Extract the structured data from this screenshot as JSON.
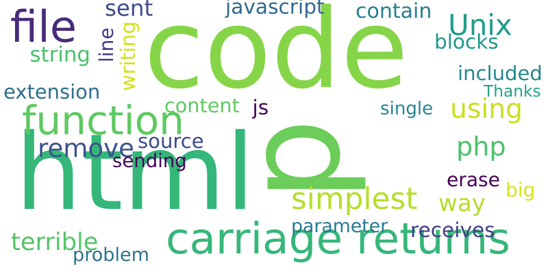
{
  "words": [
    {
      "text": "code",
      "color": "#86d549"
    },
    {
      "text": "p",
      "color": "#6ccd5a"
    },
    {
      "text": "html",
      "color": "#35b779"
    },
    {
      "text": "carriage returns",
      "color": "#35b779"
    },
    {
      "text": "function",
      "color": "#5ec962"
    },
    {
      "text": "file",
      "color": "#472c7a"
    },
    {
      "text": "simplest",
      "color": "#b5de2b"
    },
    {
      "text": "way",
      "color": "#b5de2b"
    },
    {
      "text": "Unix",
      "color": "#1f9e89"
    },
    {
      "text": "remove",
      "color": "#3b528b"
    },
    {
      "text": "php",
      "color": "#4ac16d"
    },
    {
      "text": "using",
      "color": "#c8e020"
    },
    {
      "text": "javascript",
      "color": "#31688e"
    },
    {
      "text": "contain",
      "color": "#277f8e"
    },
    {
      "text": "sent",
      "color": "#3e4a89"
    },
    {
      "text": "writing",
      "color": "#d2e21b"
    },
    {
      "text": "line",
      "color": "#443983"
    },
    {
      "text": "blocks",
      "color": "#1f988b"
    },
    {
      "text": "string",
      "color": "#4ac16d"
    },
    {
      "text": "included",
      "color": "#23898e"
    },
    {
      "text": "extension",
      "color": "#2d708e"
    },
    {
      "text": "Thanks",
      "color": "#20a486"
    },
    {
      "text": "content",
      "color": "#5ec962"
    },
    {
      "text": "js",
      "color": "#440154"
    },
    {
      "text": "single",
      "color": "#25858e"
    },
    {
      "text": "source",
      "color": "#3e4989"
    },
    {
      "text": "sending",
      "color": "#450559"
    },
    {
      "text": "erase",
      "color": "#440154"
    },
    {
      "text": "big",
      "color": "#d8e219"
    },
    {
      "text": "parameter",
      "color": "#297b8e"
    },
    {
      "text": "receives",
      "color": "#433e85"
    },
    {
      "text": "terrible",
      "color": "#54c568"
    },
    {
      "text": "problem",
      "color": "#2c728e"
    }
  ]
}
